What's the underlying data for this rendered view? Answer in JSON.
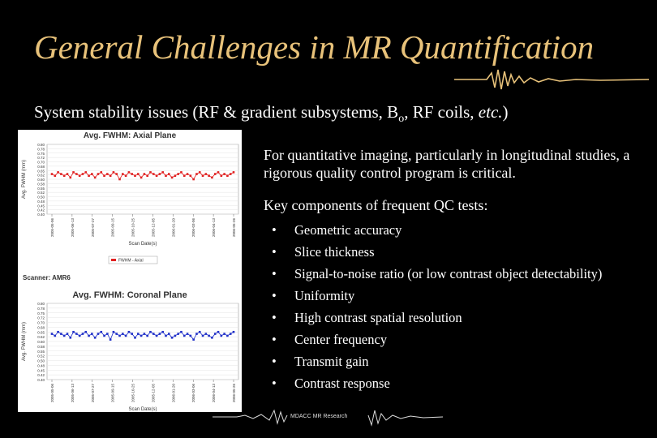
{
  "slide": {
    "title": "General Challenges in MR Quantification",
    "subtitle_prefix": "System stability issues (RF & gradient subsystems, B",
    "subtitle_sub": "o",
    "subtitle_suffix": ", RF coils, ",
    "subtitle_etc": "etc.",
    "subtitle_close": ")"
  },
  "content": {
    "para1": "For quantitative imaging, particularly in longitudinal studies, a rigorous quality control program is critical.",
    "para2": "Key components of frequent QC tests:",
    "bullet_symbol": "•",
    "bullets": [
      "Geometric accuracy",
      "Slice thickness",
      "Signal-to-noise ratio (or low contrast object detectability)",
      "Uniformity",
      "High contrast spatial resolution",
      "Center frequency",
      "Transmit gain",
      "Contrast response"
    ]
  },
  "footer": {
    "text": "MDACC MR Research"
  },
  "scanner_label": "Scanner: AMR6",
  "chart_data": [
    {
      "type": "line",
      "title": "Avg. FWHM: Axial Plane",
      "xlabel": "Scan Date(s)",
      "ylabel": "Avg. FWHM (mm)",
      "ylim": [
        0.4,
        0.8
      ],
      "yticks": [
        "0.80",
        "0.78",
        "0.75",
        "0.72",
        "0.70",
        "0.68",
        "0.65",
        "0.62",
        "0.60",
        "0.58",
        "0.55",
        "0.52",
        "0.50",
        "0.48",
        "0.45",
        "0.42",
        "0.40"
      ],
      "xticks": [
        "2005-05-06",
        "2005-06-13",
        "2005-07-27",
        "2005-09-15",
        "2005-10-25",
        "2005-12-05",
        "2006-01-20",
        "2006-03-06",
        "2006-04-13",
        "2006-05-26"
      ],
      "legend": "FWHM - Axial",
      "color": "#e02020",
      "series": [
        {
          "values": [
            0.63,
            0.62,
            0.64,
            0.63,
            0.62,
            0.63,
            0.61,
            0.64,
            0.63,
            0.62,
            0.63,
            0.64,
            0.62,
            0.63,
            0.61,
            0.63,
            0.64,
            0.62,
            0.63,
            0.62,
            0.64,
            0.63,
            0.6,
            0.63,
            0.62,
            0.64,
            0.63,
            0.62,
            0.63,
            0.61,
            0.63,
            0.62,
            0.64,
            0.63,
            0.62,
            0.63,
            0.64,
            0.62,
            0.63,
            0.61,
            0.62,
            0.63,
            0.64,
            0.62,
            0.63,
            0.62,
            0.6,
            0.63,
            0.64,
            0.62,
            0.63,
            0.62,
            0.61,
            0.63,
            0.64,
            0.62,
            0.63,
            0.62,
            0.63,
            0.64
          ]
        }
      ]
    },
    {
      "type": "line",
      "title": "Avg. FWHM: Coronal Plane",
      "xlabel": "Scan Date(s)",
      "ylabel": "Avg. FWHM (mm)",
      "ylim": [
        0.4,
        0.8
      ],
      "yticks": [
        "0.80",
        "0.78",
        "0.75",
        "0.72",
        "0.70",
        "0.68",
        "0.65",
        "0.62",
        "0.60",
        "0.58",
        "0.55",
        "0.52",
        "0.50",
        "0.48",
        "0.45",
        "0.42",
        "0.40"
      ],
      "xticks": [
        "2005-05-06",
        "2005-06-13",
        "2005-07-27",
        "2005-09-15",
        "2005-10-25",
        "2005-12-05",
        "2006-01-20",
        "2006-03-06",
        "2006-04-13",
        "2006-05-26"
      ],
      "color": "#2030c8",
      "series": [
        {
          "values": [
            0.64,
            0.63,
            0.65,
            0.64,
            0.63,
            0.64,
            0.62,
            0.65,
            0.64,
            0.63,
            0.64,
            0.65,
            0.63,
            0.64,
            0.62,
            0.64,
            0.65,
            0.63,
            0.64,
            0.61,
            0.65,
            0.64,
            0.63,
            0.64,
            0.63,
            0.65,
            0.64,
            0.62,
            0.64,
            0.63,
            0.64,
            0.63,
            0.65,
            0.64,
            0.63,
            0.64,
            0.65,
            0.63,
            0.64,
            0.62,
            0.63,
            0.64,
            0.65,
            0.63,
            0.64,
            0.63,
            0.61,
            0.64,
            0.65,
            0.63,
            0.64,
            0.63,
            0.62,
            0.64,
            0.65,
            0.63,
            0.64,
            0.63,
            0.64,
            0.65
          ]
        }
      ]
    }
  ]
}
